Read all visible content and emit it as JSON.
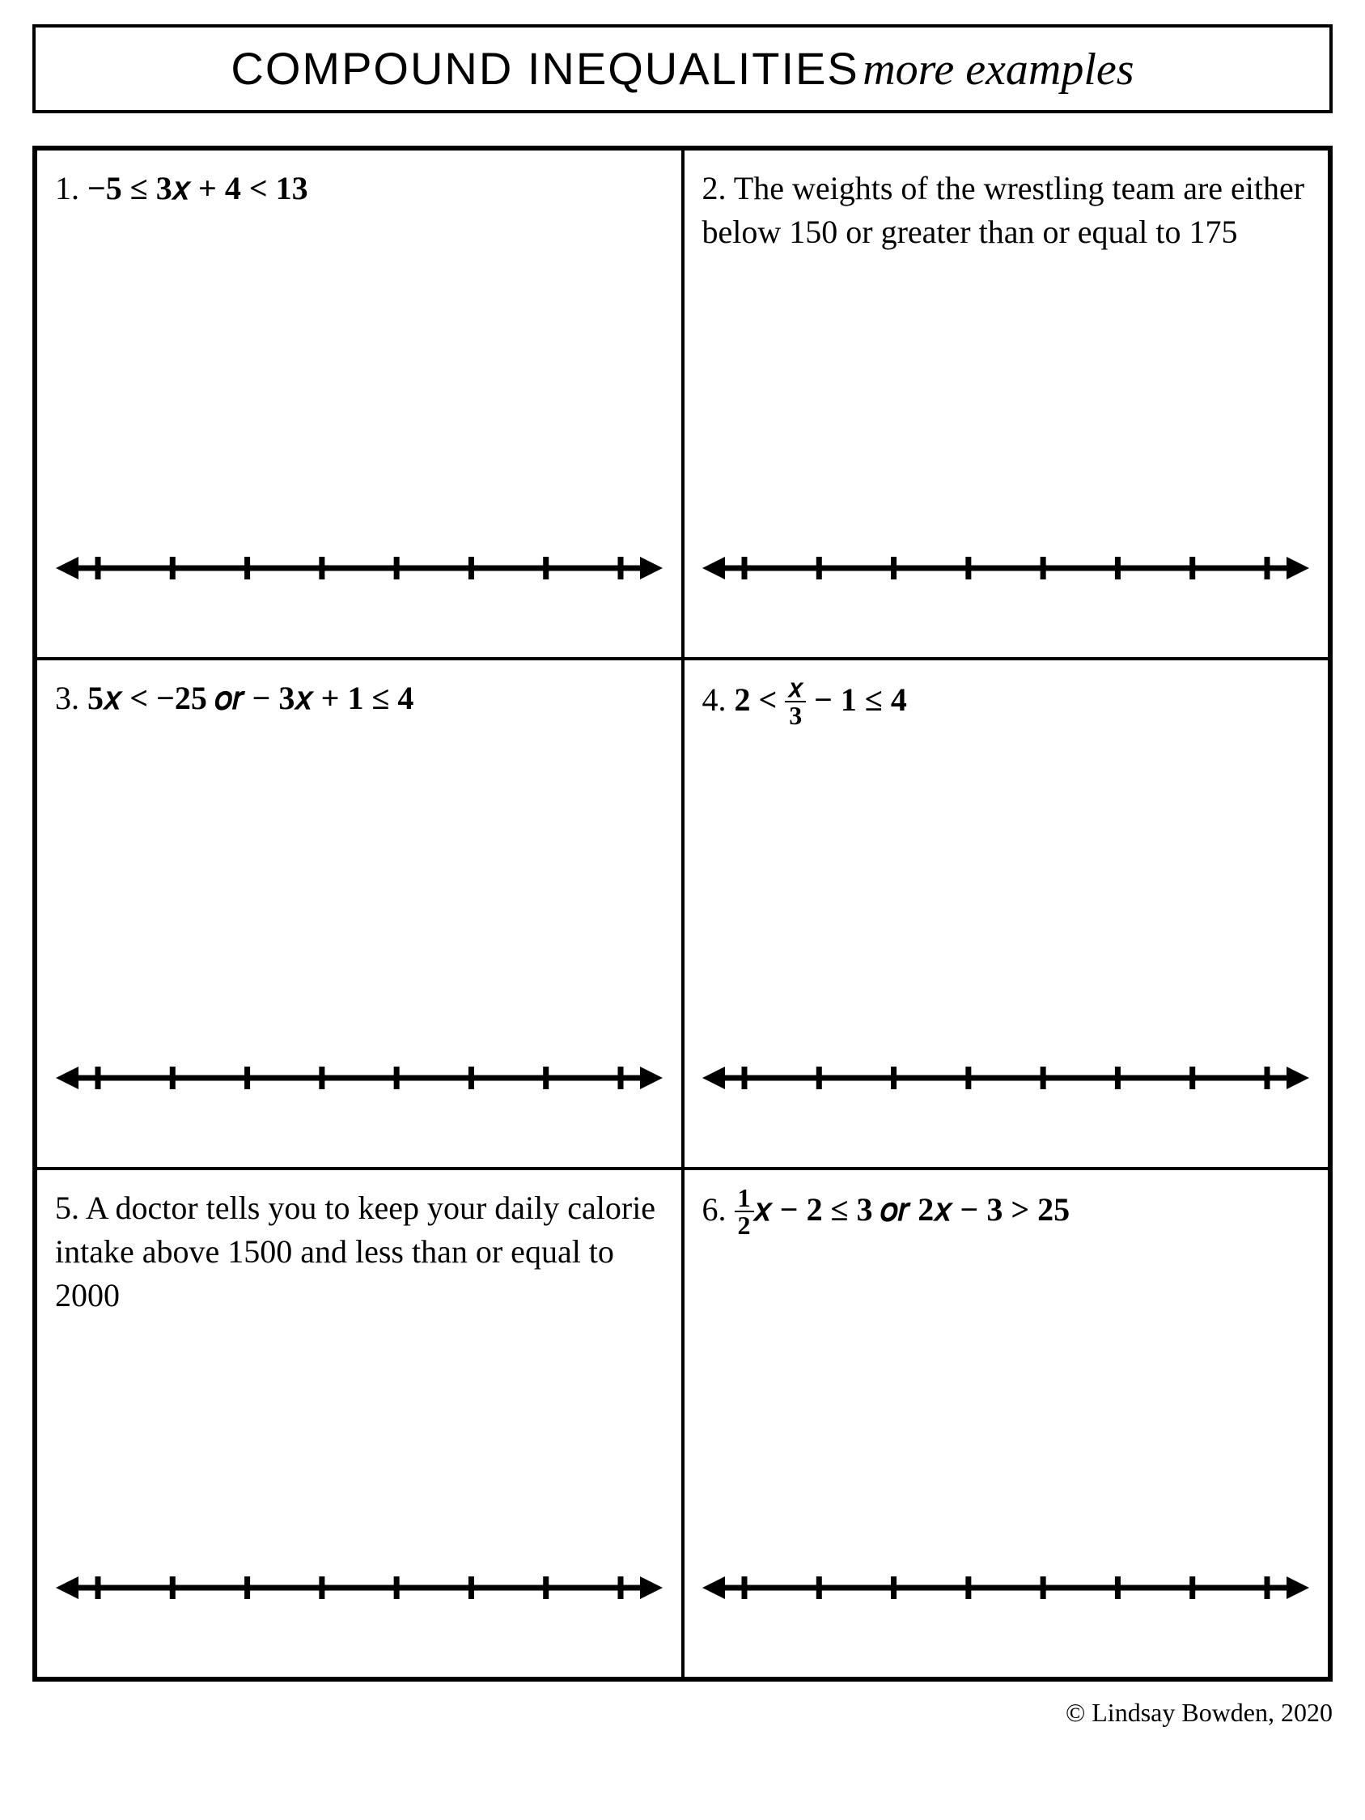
{
  "title": {
    "caps": "COMPOUND INEQUALITIES",
    "script": "more examples"
  },
  "problems": [
    {
      "num": "1.",
      "kind": "math",
      "html": "−5 ≤ 3𝑥 + 4 < 13"
    },
    {
      "num": "2.",
      "kind": "text",
      "html": "The weights of the wrestling team are either below 150 or greater than or equal to 175"
    },
    {
      "num": "3.",
      "kind": "math",
      "html": "5𝑥 < −25 𝑜𝑟 − 3𝑥 + 1 ≤ 4"
    },
    {
      "num": "4.",
      "kind": "frac1",
      "html": "2 < ",
      "frac_num": "𝑥",
      "frac_den": "3",
      "tail": " − 1 ≤ 4"
    },
    {
      "num": "5.",
      "kind": "text",
      "html": "A doctor tells you to keep your daily calorie intake above 1500 and less than or equal to 2000"
    },
    {
      "num": "6.",
      "kind": "frac2",
      "frac_num": "1",
      "frac_den": "2",
      "tail": "𝑥 − 2 ≤ 3 𝑜𝑟 2𝑥 − 3 > 25"
    }
  ],
  "numberline": {
    "ticks": 8,
    "stroke": "#000000",
    "line_width": 7,
    "tick_height": 28,
    "tick_width": 7,
    "arrow_size": 20
  },
  "footer": "© Lindsay Bowden, 2020"
}
